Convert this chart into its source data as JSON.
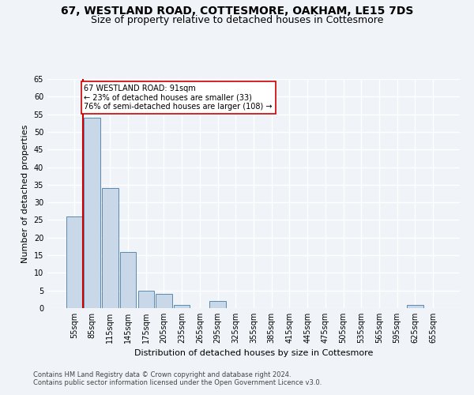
{
  "title": "67, WESTLAND ROAD, COTTESMORE, OAKHAM, LE15 7DS",
  "subtitle": "Size of property relative to detached houses in Cottesmore",
  "xlabel": "Distribution of detached houses by size in Cottesmore",
  "ylabel": "Number of detached properties",
  "footer_line1": "Contains HM Land Registry data © Crown copyright and database right 2024.",
  "footer_line2": "Contains public sector information licensed under the Open Government Licence v3.0.",
  "bin_labels": [
    "55sqm",
    "85sqm",
    "115sqm",
    "145sqm",
    "175sqm",
    "205sqm",
    "235sqm",
    "265sqm",
    "295sqm",
    "325sqm",
    "355sqm",
    "385sqm",
    "415sqm",
    "445sqm",
    "475sqm",
    "505sqm",
    "535sqm",
    "565sqm",
    "595sqm",
    "625sqm",
    "655sqm"
  ],
  "bar_values": [
    26,
    54,
    34,
    16,
    5,
    4,
    1,
    0,
    2,
    0,
    0,
    0,
    0,
    0,
    0,
    0,
    0,
    0,
    0,
    1,
    0
  ],
  "bar_color": "#c8d8e8",
  "bar_edge_color": "#5a8ab0",
  "property_bin_index": 1,
  "red_line_color": "#cc0000",
  "annotation_text": "67 WESTLAND ROAD: 91sqm\n← 23% of detached houses are smaller (33)\n76% of semi-detached houses are larger (108) →",
  "annotation_box_color": "#ffffff",
  "annotation_box_edge": "#cc0000",
  "ylim": [
    0,
    65
  ],
  "yticks": [
    0,
    5,
    10,
    15,
    20,
    25,
    30,
    35,
    40,
    45,
    50,
    55,
    60,
    65
  ],
  "background_color": "#f0f4f8",
  "plot_background": "#f0f4f8",
  "grid_color": "#ffffff",
  "title_fontsize": 10,
  "subtitle_fontsize": 9,
  "axis_label_fontsize": 8,
  "tick_fontsize": 7,
  "footer_fontsize": 6,
  "annotation_fontsize": 7
}
